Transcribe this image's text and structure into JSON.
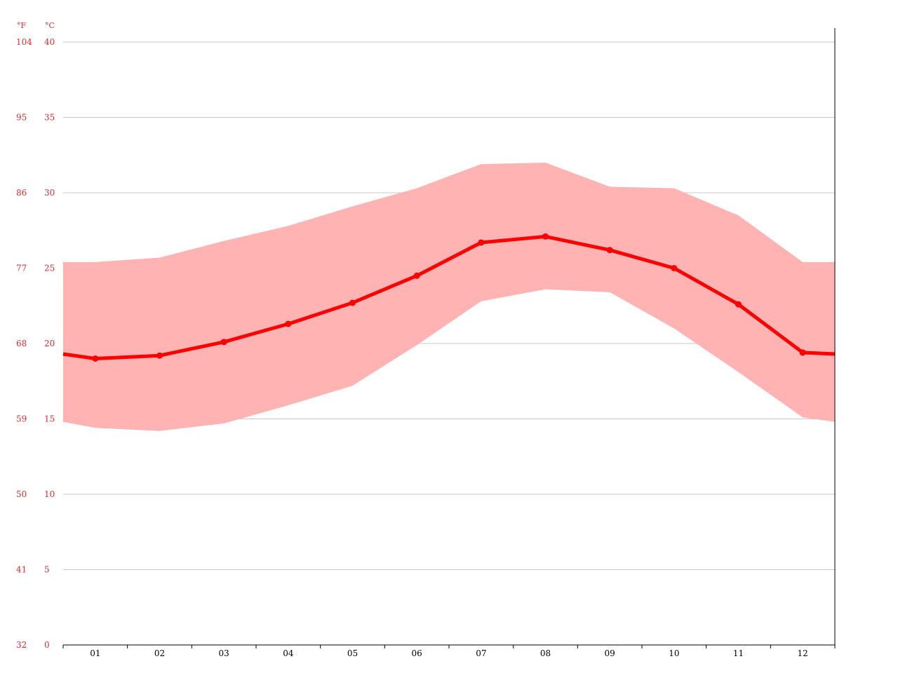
{
  "chart_data": {
    "type": "area",
    "categories": [
      "01",
      "02",
      "03",
      "04",
      "05",
      "06",
      "07",
      "08",
      "09",
      "10",
      "11",
      "12"
    ],
    "unit_f": "°F",
    "unit_c": "°C",
    "celsius_ticks": [
      "0",
      "5",
      "10",
      "15",
      "20",
      "25",
      "30",
      "35",
      "40"
    ],
    "fahrenheit_ticks": [
      "32",
      "41",
      "50",
      "59",
      "68",
      "77",
      "86",
      "95",
      "104"
    ],
    "ylim": [
      0,
      40
    ],
    "grid": true,
    "series": [
      {
        "role": "average",
        "values": [
          19.0,
          19.2,
          20.1,
          21.3,
          22.7,
          24.5,
          26.7,
          27.1,
          26.2,
          25.0,
          22.6,
          19.4
        ],
        "color": "#ff0000"
      },
      {
        "role": "max",
        "values": [
          25.4,
          25.7,
          26.8,
          27.8,
          29.1,
          30.3,
          31.9,
          32.0,
          30.4,
          30.3,
          28.5,
          25.4
        ],
        "color": "#ffb3b3"
      },
      {
        "role": "min",
        "values": [
          14.4,
          14.2,
          14.7,
          15.9,
          17.2,
          19.9,
          22.8,
          23.6,
          23.4,
          21.0,
          18.1,
          15.1
        ],
        "color": "#ffb3b3"
      }
    ],
    "edge_values": {
      "average": [
        19.3,
        19.3
      ],
      "max": [
        25.4,
        25.4
      ],
      "min": [
        14.8,
        14.8
      ]
    }
  }
}
